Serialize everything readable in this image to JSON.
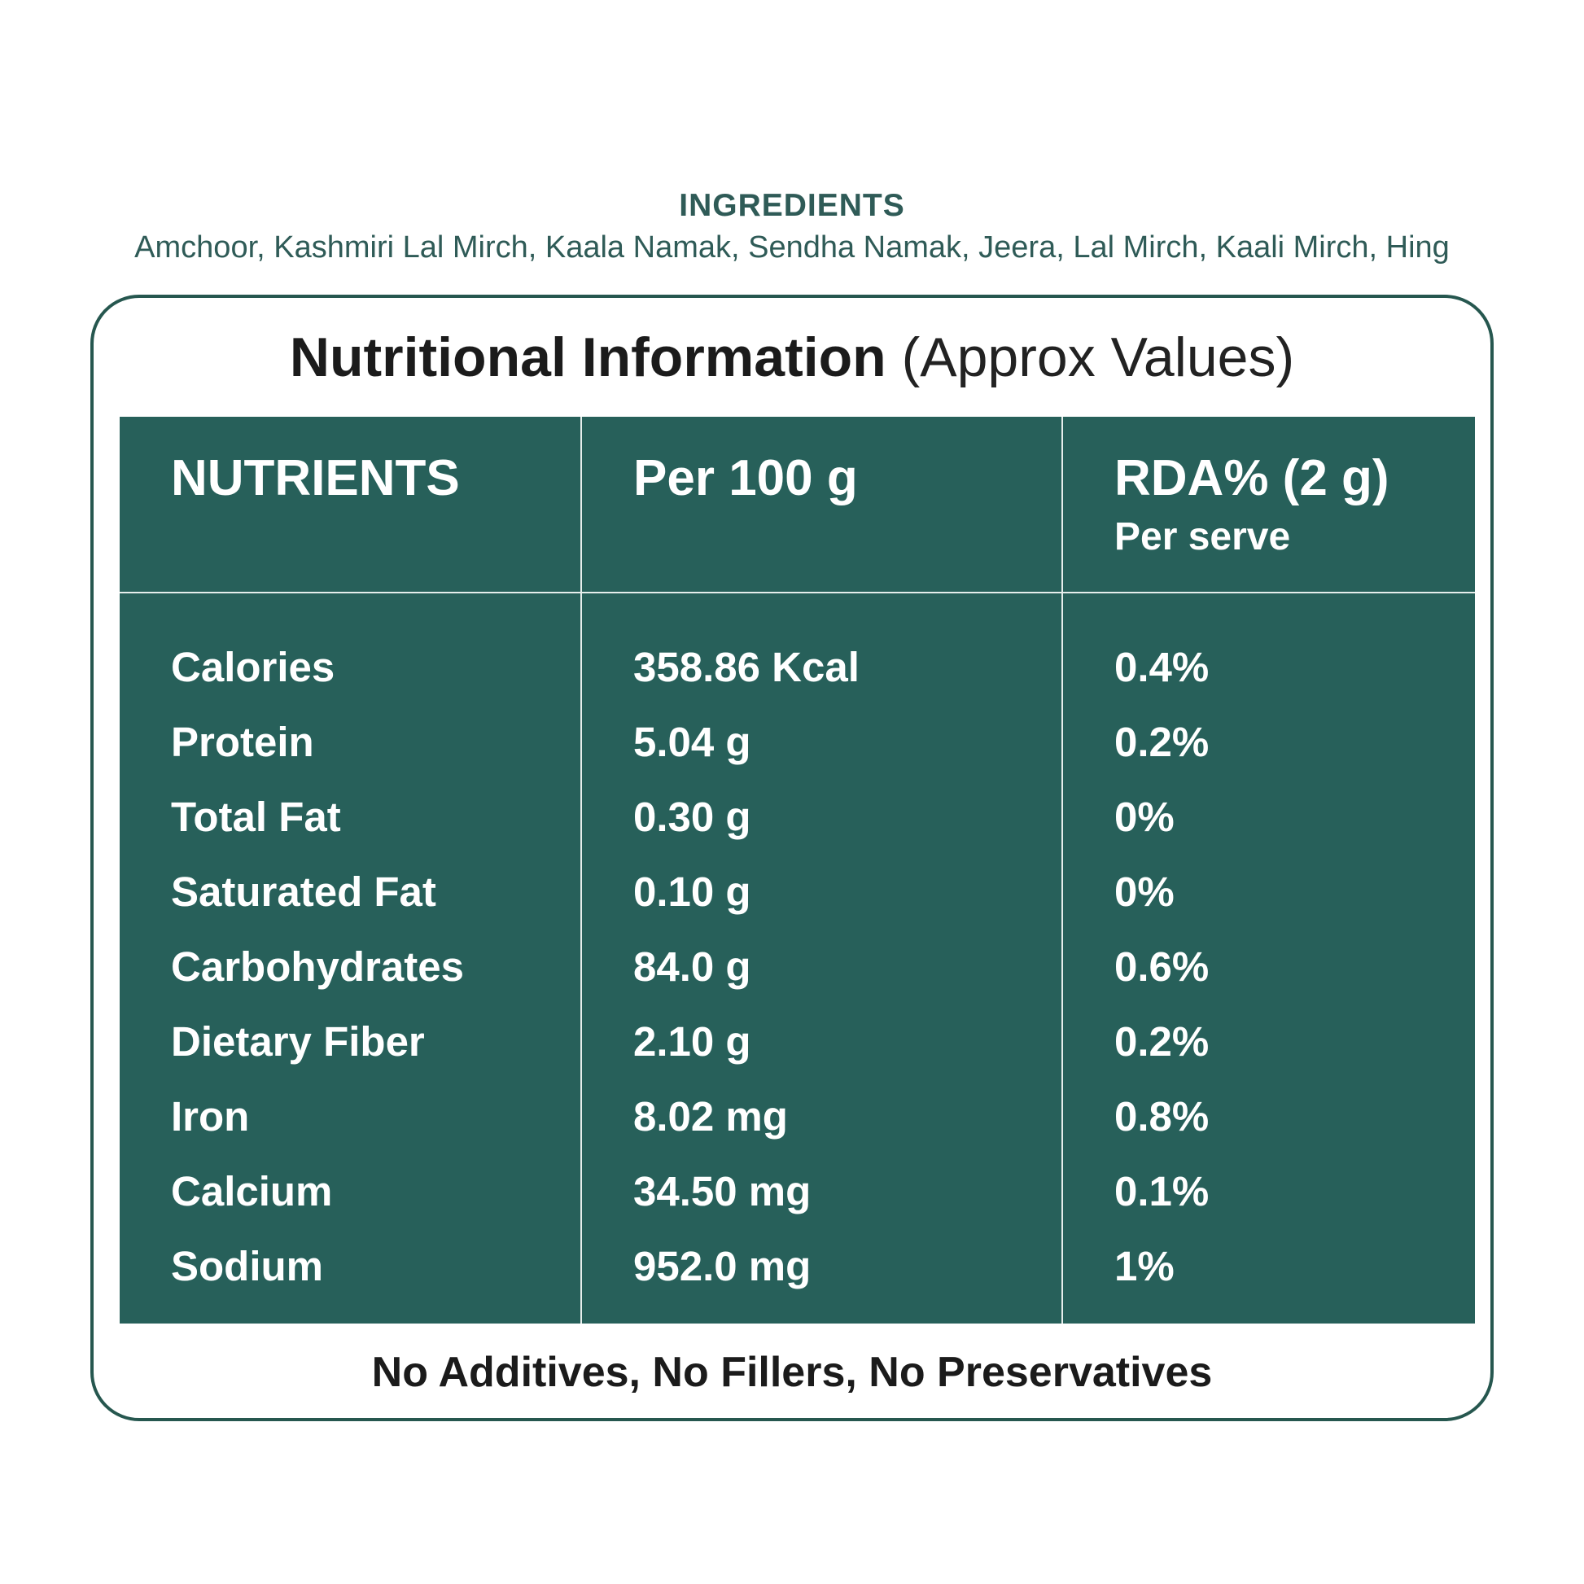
{
  "ingredients": {
    "heading": "INGREDIENTS",
    "list": "Amchoor, Kashmiri Lal Mirch, Kaala Namak, Sendha Namak, Jeera, Lal Mirch, Kaali Mirch, Hing"
  },
  "nutrition": {
    "title_bold": "Nutritional Information",
    "title_light": "(Approx Values)",
    "headers": {
      "nutrients": "NUTRIENTS",
      "per100": "Per 100 g",
      "rda": "RDA% (2 g)",
      "rda_sub": "Per serve"
    },
    "rows": [
      {
        "name": "Calories",
        "per100": "358.86 Kcal",
        "rda": "0.4%"
      },
      {
        "name": "Protein",
        "per100": "5.04 g",
        "rda": "0.2%"
      },
      {
        "name": "Total Fat",
        "per100": "0.30 g",
        "rda": "0%"
      },
      {
        "name": "Saturated Fat",
        "per100": "0.10 g",
        "rda": "0%"
      },
      {
        "name": "Carbohydrates",
        "per100": "84.0 g",
        "rda": "0.6%"
      },
      {
        "name": "Dietary Fiber",
        "per100": "2.10 g",
        "rda": "0.2%"
      },
      {
        "name": "Iron",
        "per100": "8.02 mg",
        "rda": "0.8%"
      },
      {
        "name": "Calcium",
        "per100": "34.50 mg",
        "rda": "0.1%"
      },
      {
        "name": "Sodium",
        "per100": "952.0 mg",
        "rda": "1%"
      }
    ],
    "footer": "No Additives, No Fillers, No Preservatives"
  },
  "colors": {
    "table_bg": "#27605a",
    "accent_text": "#2f5b57",
    "border": "#26574f"
  }
}
